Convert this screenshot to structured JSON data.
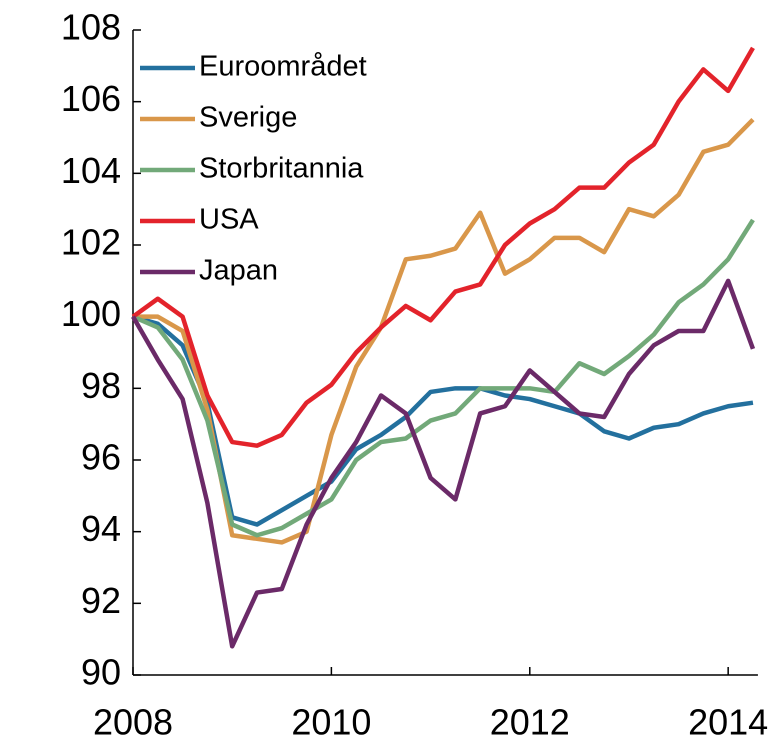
{
  "chart_data": {
    "type": "line",
    "x": [
      2008,
      2008.25,
      2008.5,
      2008.75,
      2009,
      2009.25,
      2009.5,
      2009.75,
      2010,
      2010.25,
      2010.5,
      2010.75,
      2011,
      2011.25,
      2011.5,
      2011.75,
      2012,
      2012.25,
      2012.5,
      2012.75,
      2013,
      2013.25,
      2013.5,
      2013.75,
      2014,
      2014.25
    ],
    "series": [
      {
        "name": "Euroområdet",
        "color": "#23709e",
        "values": [
          100,
          99.8,
          99.2,
          97.6,
          94.4,
          94.2,
          94.6,
          95.0,
          95.4,
          96.3,
          96.7,
          97.2,
          97.9,
          98.0,
          98.0,
          97.8,
          97.7,
          97.5,
          97.3,
          96.8,
          96.6,
          96.9,
          97.0,
          97.3,
          97.5,
          97.6
        ]
      },
      {
        "name": "Sverige",
        "color": "#d9974a",
        "values": [
          100,
          100.0,
          99.6,
          97.4,
          93.9,
          93.8,
          93.7,
          94.0,
          96.7,
          98.6,
          99.7,
          101.6,
          101.7,
          101.9,
          102.9,
          101.2,
          101.6,
          102.2,
          102.2,
          101.8,
          103.0,
          102.8,
          103.4,
          104.6,
          104.8,
          105.5
        ]
      },
      {
        "name": "Storbritannia",
        "color": "#72a979",
        "values": [
          100,
          99.7,
          98.8,
          97.1,
          94.2,
          93.9,
          94.1,
          94.5,
          94.9,
          96.0,
          96.5,
          96.6,
          97.1,
          97.3,
          98.0,
          98.0,
          98.0,
          97.9,
          98.7,
          98.4,
          98.9,
          99.5,
          100.4,
          100.9,
          101.6,
          102.7
        ]
      },
      {
        "name": "USA",
        "color": "#e3232b",
        "values": [
          100,
          100.5,
          100.0,
          97.8,
          96.5,
          96.4,
          96.7,
          97.6,
          98.1,
          99.0,
          99.7,
          100.3,
          99.9,
          100.7,
          100.9,
          102.0,
          102.6,
          103.0,
          103.6,
          103.6,
          104.3,
          104.8,
          106.0,
          106.9,
          106.3,
          107.5
        ]
      },
      {
        "name": "Japan",
        "color": "#6b2a68",
        "values": [
          100,
          98.8,
          97.7,
          94.8,
          90.8,
          92.3,
          92.4,
          94.2,
          95.5,
          96.5,
          97.8,
          97.3,
          95.5,
          94.9,
          97.3,
          97.5,
          98.5,
          97.9,
          97.3,
          97.2,
          98.4,
          99.2,
          99.6,
          99.6,
          101.0,
          99.1
        ]
      }
    ],
    "xlim": [
      2008,
      2014.3
    ],
    "xticks": [
      2008,
      2010,
      2012,
      2014
    ],
    "ylim": [
      90,
      108
    ],
    "yticks": [
      90,
      92,
      94,
      96,
      98,
      100,
      102,
      104,
      106,
      108
    ],
    "grid": false,
    "legend": "upper left"
  }
}
